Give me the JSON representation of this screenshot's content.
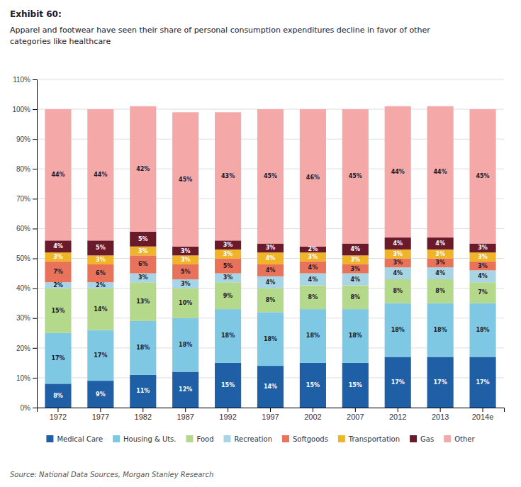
{
  "chart_data": {
    "type": "bar",
    "stacked": true,
    "title": "Exhibit 60:",
    "subtitle": "Apparel and footwear have seen their share of personal consumption expenditures decline in favor of other\ncategories like healthcare",
    "annotations": [
      "Source: National Data Sources, Morgan Stanley Research"
    ],
    "categories": [
      "1972",
      "1977",
      "1982",
      "1987",
      "1992",
      "1997",
      "2002",
      "2007",
      "2012",
      "2013",
      "2014e"
    ],
    "series": [
      {
        "name": "Medical Care",
        "color": "#1f5fa6",
        "values": [
          8,
          9,
          11,
          12,
          15,
          14,
          15,
          15,
          17,
          17,
          17
        ],
        "value_labels": [
          "8%",
          "9%",
          "11%",
          "12%",
          "15%",
          "14%",
          "15%",
          "15%",
          "17%",
          "17%",
          "17%"
        ]
      },
      {
        "name": "Housing & Uts.",
        "color": "#7ec8e3",
        "values": [
          17,
          17,
          18,
          18,
          18,
          18,
          18,
          18,
          18,
          18,
          18
        ],
        "value_labels": [
          "17%",
          "17%",
          "18%",
          "18%",
          "18%",
          "18%",
          "18%",
          "18%",
          "18%",
          "18%",
          "18%"
        ]
      },
      {
        "name": "Food",
        "color": "#b5d98b",
        "values": [
          15,
          14,
          13,
          10,
          9,
          8,
          8,
          8,
          8,
          8,
          7
        ],
        "value_labels": [
          "15%",
          "14%",
          "13%",
          "10%",
          "9%",
          "8%",
          "8%",
          "8%",
          "8%",
          "8%",
          "7%"
        ]
      },
      {
        "name": "Recreation",
        "color": "#a8d5e5",
        "values": [
          2,
          2,
          3,
          3,
          3,
          4,
          4,
          4,
          4,
          4,
          4
        ],
        "value_labels": [
          "2%",
          "2%",
          "3%",
          "3%",
          "3%",
          "4%",
          "4%",
          "4%",
          "4%",
          "4%",
          "4%"
        ]
      },
      {
        "name": "Softgoods",
        "color": "#e8735a",
        "values": [
          7,
          6,
          6,
          5,
          5,
          4,
          4,
          3,
          3,
          3,
          3
        ],
        "value_labels": [
          "7%",
          "6%",
          "6%",
          "5%",
          "5%",
          "4%",
          "4%",
          "3%",
          "3%",
          "3%",
          "3%"
        ]
      },
      {
        "name": "Transportation",
        "color": "#f0b429",
        "values": [
          3,
          3,
          3,
          3,
          3,
          4,
          3,
          3,
          3,
          3,
          3
        ],
        "value_labels": [
          "3%",
          "3%",
          "3%",
          "3%",
          "3%",
          "4%",
          "3%",
          "3%",
          "3%",
          "3%",
          "3%"
        ]
      },
      {
        "name": "Gas",
        "color": "#6b1a2a",
        "values": [
          4,
          5,
          5,
          3,
          3,
          3,
          2,
          4,
          4,
          4,
          3
        ],
        "value_labels": [
          "4%",
          "5%",
          "5%",
          "3%",
          "3%",
          "3%",
          "2%",
          "4%",
          "4%",
          "4%",
          "3%"
        ]
      },
      {
        "name": "Other",
        "color": "#f4a9a8",
        "values": [
          44,
          44,
          42,
          45,
          43,
          45,
          46,
          45,
          44,
          44,
          45
        ],
        "value_labels": [
          "44%",
          "44%",
          "42%",
          "45%",
          "43%",
          "45%",
          "46%",
          "45%",
          "44%",
          "44%",
          "45%"
        ]
      }
    ],
    "ylim": [
      0,
      110
    ],
    "yticks": [
      {
        "value": 0,
        "label": "0%"
      },
      {
        "value": 10,
        "label": "10%"
      },
      {
        "value": 20,
        "label": "20%"
      },
      {
        "value": 30,
        "label": "30%"
      },
      {
        "value": 40,
        "label": "40%"
      },
      {
        "value": 50,
        "label": "50%"
      },
      {
        "value": 60,
        "label": "60%"
      },
      {
        "value": 70,
        "label": "70%"
      },
      {
        "value": 80,
        "label": "80%"
      },
      {
        "value": 90,
        "label": "90%"
      },
      {
        "value": 100,
        "label": "100%"
      },
      {
        "value": 110,
        "label": "110%"
      }
    ],
    "grid": true,
    "data_labels": true,
    "legend": "bottom"
  }
}
